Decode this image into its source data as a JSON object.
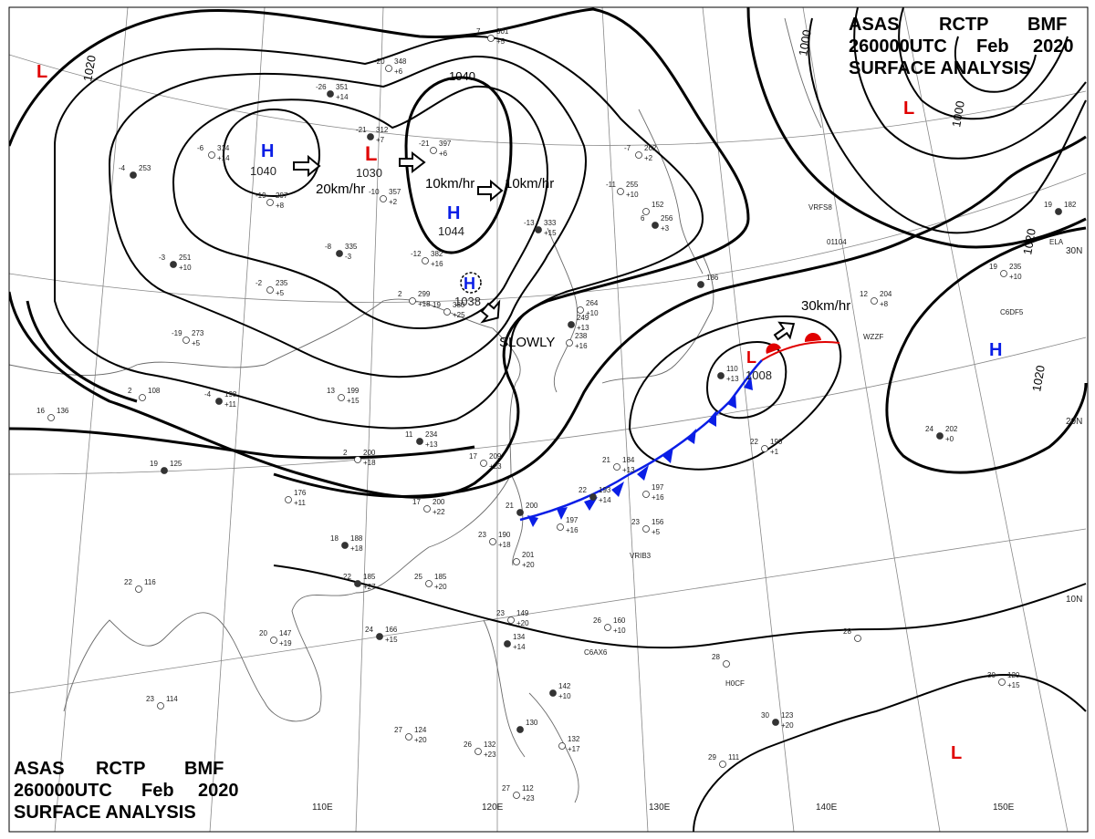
{
  "header_top": {
    "line1": [
      "ASAS",
      "RCTP",
      "BMF"
    ],
    "line2": [
      "260000UTC",
      "Feb",
      "2020"
    ],
    "line3": "SURFACE ANALYSIS"
  },
  "header_bottom": {
    "line1": [
      "ASAS",
      "RCTP",
      "BMF"
    ],
    "line2": [
      "260000UTC",
      "Feb",
      "2020"
    ],
    "line3": "SURFACE ANALYSIS"
  },
  "colors": {
    "high": "#0a1ee6",
    "low": "#e00000",
    "cold_front": "#0a1ee6",
    "warm_front": "#e00000",
    "isobar": "#000000"
  },
  "longitude_labels": [
    "110E",
    "120E",
    "130E",
    "140E",
    "150E"
  ],
  "latitude_labels": [
    "30N",
    "20N",
    "10N"
  ],
  "isobar_labels": [
    "1020",
    "1040",
    "1000",
    "1000",
    "1020",
    "1020"
  ],
  "pressure_systems": [
    {
      "type": "H",
      "value": "1040"
    },
    {
      "type": "L",
      "value": "1030"
    },
    {
      "type": "H",
      "value": "1044"
    },
    {
      "type": "H",
      "value": "1038"
    },
    {
      "type": "L",
      "value": "1008"
    },
    {
      "type": "H",
      "value": ""
    },
    {
      "type": "L",
      "value": ""
    },
    {
      "type": "L",
      "value": ""
    },
    {
      "type": "L",
      "value": ""
    }
  ],
  "motion_labels": [
    "20km/hr",
    "10km/hr",
    "10km/hr",
    "SLOWLY",
    "30km/hr"
  ],
  "station_plots": [
    {
      "t": "-26",
      "p": "351",
      "d": "+14"
    },
    {
      "t": "-20",
      "p": "348",
      "d": "+6"
    },
    {
      "t": "7",
      "p": "301",
      "d": "+5"
    },
    {
      "t": "-21",
      "p": "312",
      "d": "+7"
    },
    {
      "t": "-21",
      "p": "397",
      "d": "+6"
    },
    {
      "t": "-6",
      "p": "314",
      "d": "+14"
    },
    {
      "t": "-4",
      "p": "253",
      "d": ""
    },
    {
      "t": "-19",
      "p": "297",
      "d": "+8"
    },
    {
      "t": "-10",
      "p": "357",
      "d": "+2"
    },
    {
      "t": "-8",
      "p": "335",
      "d": "-3"
    },
    {
      "t": "-2",
      "p": "235",
      "d": "+5"
    },
    {
      "t": "-12",
      "p": "382",
      "d": "+16"
    },
    {
      "t": "-3",
      "p": "251",
      "d": "+10"
    },
    {
      "t": "2",
      "p": "299",
      "d": "+18"
    },
    {
      "t": "19",
      "p": "330",
      "d": "+25"
    },
    {
      "t": "-13",
      "p": "333",
      "d": "+15"
    },
    {
      "t": "-11",
      "p": "255",
      "d": "+10"
    },
    {
      "t": "-7",
      "p": "262",
      "d": "+2"
    },
    {
      "t": "6",
      "p": "256",
      "d": "+3"
    },
    {
      "t": "-19",
      "p": "273",
      "d": "+5"
    },
    {
      "t": "2",
      "p": "108",
      "d": ""
    },
    {
      "t": "-4",
      "p": "198",
      "d": "+11"
    },
    {
      "t": "13",
      "p": "199",
      "d": "+15"
    },
    {
      "t": "16",
      "p": "136",
      "d": ""
    },
    {
      "t": "11",
      "p": "234",
      "d": "+13"
    },
    {
      "t": "2",
      "p": "200",
      "d": "+18"
    },
    {
      "t": "17",
      "p": "209",
      "d": "+23"
    },
    {
      "t": "19",
      "p": "125",
      "d": ""
    },
    {
      "t": "",
      "p": "176",
      "d": "+11"
    },
    {
      "t": "17",
      "p": "200",
      "d": "+22"
    },
    {
      "t": "18",
      "p": "188",
      "d": "+18"
    },
    {
      "t": "23",
      "p": "190",
      "d": "+18"
    },
    {
      "t": "",
      "p": "201",
      "d": "+20"
    },
    {
      "t": "22",
      "p": "185",
      "d": "+27"
    },
    {
      "t": "25",
      "p": "185",
      "d": "+20"
    },
    {
      "t": "22",
      "p": "116",
      "d": ""
    },
    {
      "t": "24",
      "p": "166",
      "d": "+15"
    },
    {
      "t": "20",
      "p": "147",
      "d": "+19"
    },
    {
      "t": "23",
      "p": "149",
      "d": "+20"
    },
    {
      "t": "",
      "p": "134",
      "d": "+14"
    },
    {
      "t": "26",
      "p": "160",
      "d": "+10"
    },
    {
      "t": "23",
      "p": "114",
      "d": ""
    },
    {
      "t": "",
      "p": "142",
      "d": "+10"
    },
    {
      "t": "27",
      "p": "124",
      "d": "+20"
    },
    {
      "t": "26",
      "p": "132",
      "d": "+23"
    },
    {
      "t": "",
      "p": "130",
      "d": ""
    },
    {
      "t": "",
      "p": "132",
      "d": "+17"
    },
    {
      "t": "27",
      "p": "112",
      "d": "+23"
    },
    {
      "t": "",
      "p": "249",
      "d": "+13"
    },
    {
      "t": "",
      "p": "238",
      "d": "+16"
    },
    {
      "t": "",
      "p": "264",
      "d": "+10"
    },
    {
      "t": "",
      "p": "186",
      "d": ""
    },
    {
      "t": "12",
      "p": "204",
      "d": "+8"
    },
    {
      "t": "21",
      "p": "184",
      "d": "+13"
    },
    {
      "t": "22",
      "p": "193",
      "d": "+14"
    },
    {
      "t": "",
      "p": "197",
      "d": "+16"
    },
    {
      "t": "23",
      "p": "156",
      "d": "+5"
    },
    {
      "t": "21",
      "p": "200",
      "d": ""
    },
    {
      "t": "",
      "p": "197",
      "d": "+16"
    },
    {
      "t": "22",
      "p": "190",
      "d": "+1"
    },
    {
      "t": "24",
      "p": "202",
      "d": "+0"
    },
    {
      "t": "28",
      "p": "",
      "d": ""
    },
    {
      "t": "28",
      "p": "",
      "d": ""
    },
    {
      "t": "30",
      "p": "123",
      "d": "+20"
    },
    {
      "t": "29",
      "p": "111",
      "d": ""
    },
    {
      "t": "30",
      "p": "120",
      "d": "+15"
    },
    {
      "t": "19",
      "p": "182",
      "d": ""
    },
    {
      "t": "19",
      "p": "235",
      "d": "+10"
    },
    {
      "t": "",
      "p": "152",
      "d": ""
    },
    {
      "t": "",
      "p": "110",
      "d": "+13"
    }
  ],
  "ship_ids": [
    "VRFS8",
    "01104",
    "WZZF",
    "C6DF5",
    "ELA",
    "VRIB3",
    "C6AX6",
    "H0CF"
  ]
}
